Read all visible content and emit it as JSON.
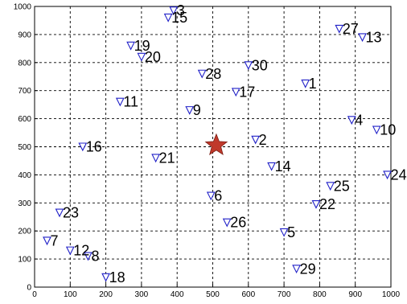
{
  "chart_data": {
    "type": "scatter",
    "xlim": [
      0,
      1000
    ],
    "ylim": [
      0,
      1000
    ],
    "xticks": [
      0,
      100,
      200,
      300,
      400,
      500,
      600,
      700,
      800,
      900,
      1000
    ],
    "yticks": [
      0,
      100,
      200,
      300,
      400,
      500,
      600,
      700,
      800,
      900,
      1000
    ],
    "grid": true,
    "colors": {
      "marker": "#2020c8",
      "center": "#c0392b"
    },
    "center": {
      "x": 510,
      "y": 505,
      "marker": "star"
    },
    "points": [
      {
        "label": "1",
        "x": 760,
        "y": 725
      },
      {
        "label": "2",
        "x": 620,
        "y": 525
      },
      {
        "label": "3",
        "x": 390,
        "y": 985
      },
      {
        "label": "4",
        "x": 890,
        "y": 595
      },
      {
        "label": "5",
        "x": 700,
        "y": 195
      },
      {
        "label": "6",
        "x": 495,
        "y": 325
      },
      {
        "label": "7",
        "x": 35,
        "y": 165
      },
      {
        "label": "8",
        "x": 150,
        "y": 110
      },
      {
        "label": "9",
        "x": 435,
        "y": 630
      },
      {
        "label": "10",
        "x": 960,
        "y": 560
      },
      {
        "label": "11",
        "x": 240,
        "y": 660
      },
      {
        "label": "12",
        "x": 100,
        "y": 130
      },
      {
        "label": "13",
        "x": 920,
        "y": 890
      },
      {
        "label": "14",
        "x": 665,
        "y": 430
      },
      {
        "label": "15",
        "x": 375,
        "y": 960
      },
      {
        "label": "16",
        "x": 135,
        "y": 500
      },
      {
        "label": "17",
        "x": 565,
        "y": 695
      },
      {
        "label": "18",
        "x": 200,
        "y": 35
      },
      {
        "label": "19",
        "x": 270,
        "y": 860
      },
      {
        "label": "20",
        "x": 300,
        "y": 820
      },
      {
        "label": "21",
        "x": 340,
        "y": 460
      },
      {
        "label": "22",
        "x": 790,
        "y": 295
      },
      {
        "label": "23",
        "x": 70,
        "y": 265
      },
      {
        "label": "24",
        "x": 990,
        "y": 400
      },
      {
        "label": "25",
        "x": 830,
        "y": 360
      },
      {
        "label": "26",
        "x": 540,
        "y": 230
      },
      {
        "label": "27",
        "x": 855,
        "y": 920
      },
      {
        "label": "28",
        "x": 470,
        "y": 760
      },
      {
        "label": "29",
        "x": 735,
        "y": 65
      },
      {
        "label": "30",
        "x": 600,
        "y": 790
      }
    ]
  }
}
